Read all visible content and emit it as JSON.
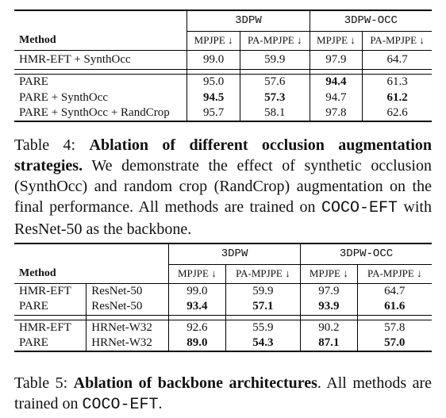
{
  "table4": {
    "group1": "3DPW",
    "group2": "3DPW-OCC",
    "method_header": "Method",
    "metric1": "MPJPE ↓",
    "metric2": "PA-MPJPE ↓",
    "metric3": "MPJPE ↓",
    "metric4": "PA-MPJPE ↓",
    "rows": [
      {
        "method": "HMR-EFT + SynthOcc",
        "v": [
          "99.0",
          "59.9",
          "97.9",
          "64.7"
        ]
      },
      {
        "method": "PARE",
        "v": [
          "95.0",
          "57.6",
          "94.4",
          "61.3"
        ]
      },
      {
        "method": "PARE + SynthOcc",
        "v": [
          "94.5",
          "57.3",
          "94.7",
          "61.2"
        ]
      },
      {
        "method": "PARE + SynthOcc + RandCrop",
        "v": [
          "95.7",
          "58.1",
          "97.8",
          "62.6"
        ]
      }
    ],
    "caption_label": "Table 4:",
    "caption_bold": "Ablation of different occlusion augmentation strategies.",
    "caption_text": " We demonstrate the effect of synthetic occlusion (SynthOcc) and random crop (RandCrop) augmentation on the final performance. All methods are trained on ",
    "caption_mono": "COCO-EFT",
    "caption_tail": " with ResNet-50 as the backbone."
  },
  "table5": {
    "group1": "3DPW",
    "group2": "3DPW-OCC",
    "method_header": "Method",
    "metric1": "MPJPE ↓",
    "metric2": "PA-MPJPE ↓",
    "metric3": "MPJPE ↓",
    "metric4": "PA-MPJPE ↓",
    "rows": [
      {
        "method": "HMR-EFT",
        "backbone": "ResNet-50",
        "v": [
          "99.0",
          "59.9",
          "97.9",
          "64.7"
        ]
      },
      {
        "method": "PARE",
        "backbone": "ResNet-50",
        "v": [
          "93.4",
          "57.1",
          "93.9",
          "61.6"
        ]
      },
      {
        "method": "HMR-EFT",
        "backbone": "HRNet-W32",
        "v": [
          "92.6",
          "55.9",
          "90.2",
          "57.8"
        ]
      },
      {
        "method": "PARE",
        "backbone": "HRNet-W32",
        "v": [
          "89.0",
          "54.3",
          "87.1",
          "57.0"
        ]
      }
    ],
    "caption_label": "Table 5:",
    "caption_bold": "Ablation of backbone architectures",
    "caption_text": ". All methods are trained on ",
    "caption_mono": "COCO-EFT",
    "caption_tail": "."
  }
}
